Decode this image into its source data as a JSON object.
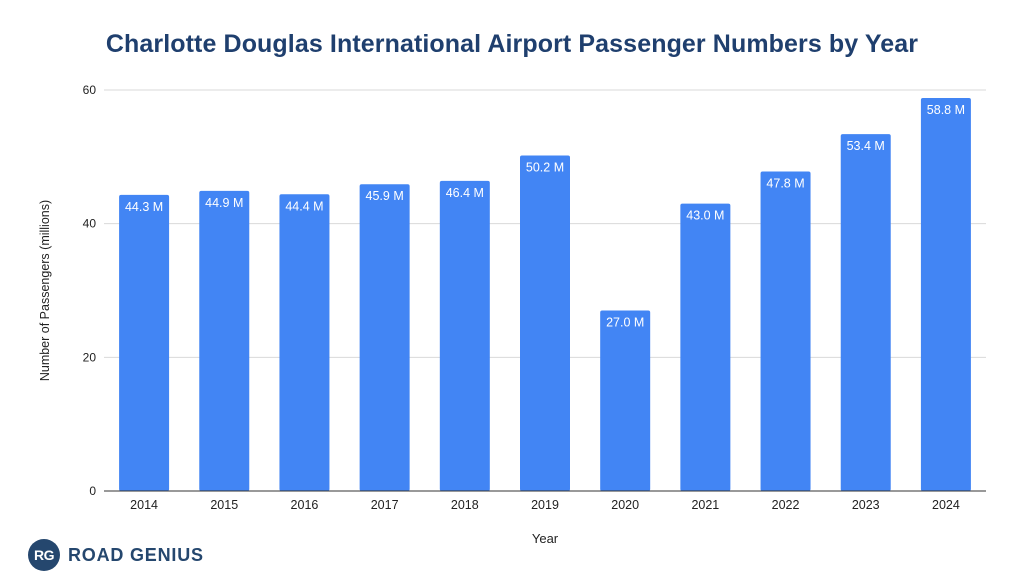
{
  "chart_data": {
    "type": "bar",
    "title": "Charlotte Douglas International Airport Passenger Numbers by Year",
    "xlabel": "Year",
    "ylabel": "Number of Passengers (millions)",
    "ylim": [
      0,
      60
    ],
    "yticks": [
      0,
      20,
      40,
      60
    ],
    "grid": true,
    "legend": "none",
    "categories": [
      "2014",
      "2015",
      "2016",
      "2017",
      "2018",
      "2019",
      "2020",
      "2021",
      "2022",
      "2023",
      "2024"
    ],
    "values": [
      44.3,
      44.9,
      44.4,
      45.9,
      46.4,
      50.2,
      27.0,
      43.0,
      47.8,
      53.4,
      58.8
    ],
    "data_labels": [
      "44.3 M",
      "44.9 M",
      "44.4 M",
      "45.9 M",
      "46.4 M",
      "50.2 M",
      "27.0 M",
      "43.0 M",
      "47.8 M",
      "53.4 M",
      "58.8 M"
    ],
    "bar_color": "#4285f4"
  },
  "brand": {
    "logo_text": "RG",
    "name": "ROAD GENIUS",
    "color": "#25476e"
  }
}
